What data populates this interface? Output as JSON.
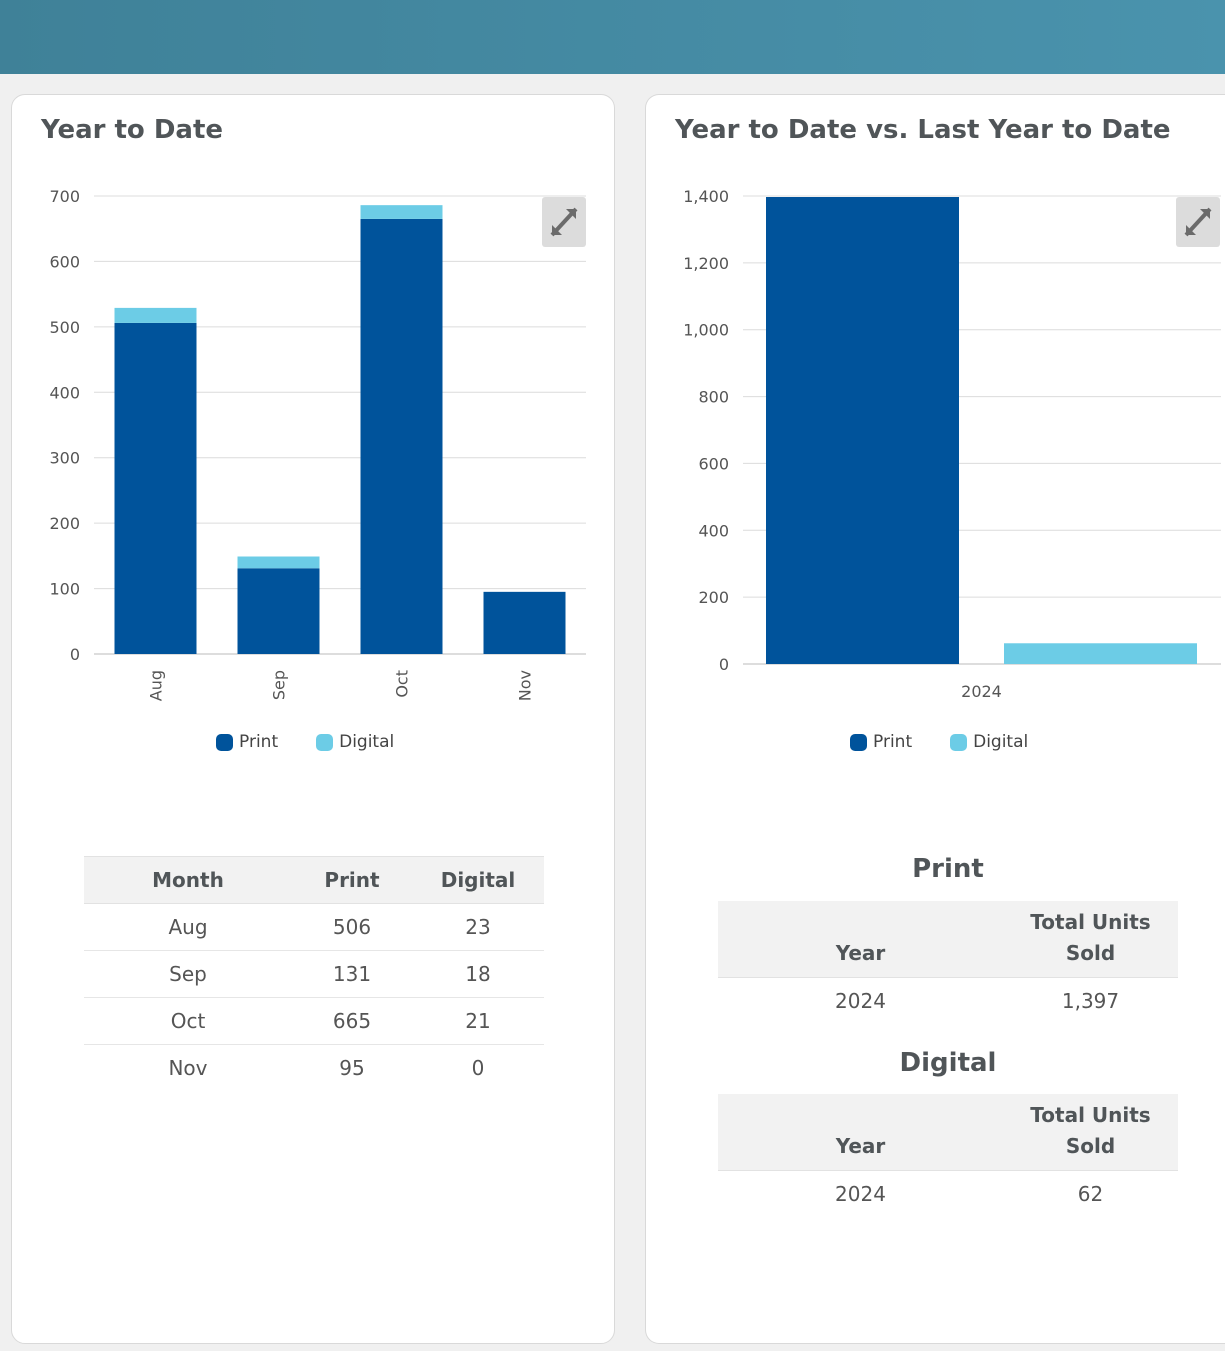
{
  "colors": {
    "print": "#00539b",
    "digital": "#6ccce6",
    "header": "#4a93ad"
  },
  "left_card": {
    "title": "Year to Date",
    "expand_icon": "expand-icon",
    "legend": [
      {
        "label": "Print"
      },
      {
        "label": "Digital"
      }
    ],
    "table": {
      "headers": [
        "Month",
        "Print",
        "Digital"
      ],
      "rows": [
        [
          "Aug",
          "506",
          "23"
        ],
        [
          "Sep",
          "131",
          "18"
        ],
        [
          "Oct",
          "665",
          "21"
        ],
        [
          "Nov",
          "95",
          "0"
        ]
      ]
    }
  },
  "right_card": {
    "title": "Year to Date vs. Last Year to Date",
    "expand_icon": "expand-icon",
    "legend": [
      {
        "label": "Print"
      },
      {
        "label": "Digital"
      }
    ],
    "print_section": {
      "title": "Print",
      "headers": [
        "Year",
        "Total Units Sold"
      ],
      "rows": [
        [
          "2024",
          "1,397"
        ]
      ]
    },
    "digital_section": {
      "title": "Digital",
      "headers": [
        "Year",
        "Total Units Sold"
      ],
      "rows": [
        [
          "2024",
          "62"
        ]
      ]
    }
  },
  "chart_data": [
    {
      "type": "bar",
      "stacked": true,
      "categories": [
        "Aug",
        "Sep",
        "Oct",
        "Nov"
      ],
      "series": [
        {
          "name": "Print",
          "values": [
            506,
            131,
            665,
            95
          ]
        },
        {
          "name": "Digital",
          "values": [
            23,
            18,
            21,
            0
          ]
        }
      ],
      "ylim": [
        0,
        700
      ],
      "yticks": [
        "0",
        "100",
        "200",
        "300",
        "400",
        "500",
        "600",
        "700"
      ],
      "ytick_values": [
        0,
        100,
        200,
        300,
        400,
        500,
        600,
        700
      ],
      "grid": true,
      "legend": "bottom-center"
    },
    {
      "type": "bar",
      "stacked": false,
      "categories": [
        "2024"
      ],
      "series": [
        {
          "name": "Print",
          "values": [
            1397
          ]
        },
        {
          "name": "Digital",
          "values": [
            62
          ]
        }
      ],
      "ylim": [
        0,
        1400
      ],
      "yticks": [
        "0",
        "200",
        "400",
        "600",
        "800",
        "1,000",
        "1,200",
        "1,400"
      ],
      "ytick_values": [
        0,
        200,
        400,
        600,
        800,
        1000,
        1200,
        1400
      ],
      "grid": true,
      "legend": "bottom-center"
    }
  ]
}
